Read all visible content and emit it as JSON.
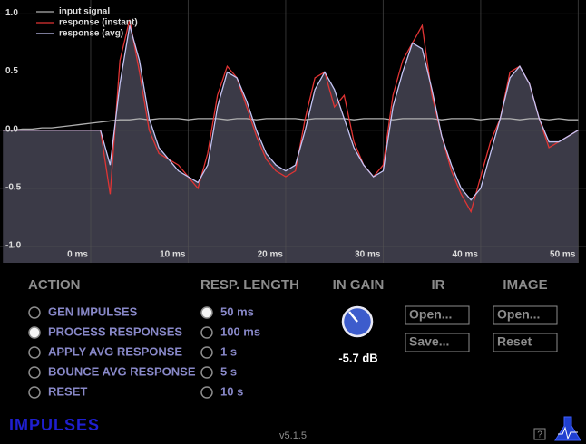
{
  "chart_data": {
    "type": "line",
    "x": [
      -9,
      -8,
      -7,
      -6,
      -5,
      -4,
      -3,
      -2,
      -1,
      0,
      1,
      2,
      3,
      4,
      5,
      6,
      7,
      8,
      9,
      10,
      11,
      12,
      13,
      14,
      15,
      16,
      17,
      18,
      19,
      20,
      21,
      22,
      23,
      24,
      25,
      26,
      27,
      28,
      29,
      30,
      31,
      32,
      33,
      34,
      35,
      36,
      37,
      38,
      39,
      40,
      41,
      42,
      43,
      44,
      45,
      46,
      47,
      48,
      49,
      50
    ],
    "series": [
      {
        "name": "input signal",
        "color": "#b0b0b0",
        "values": [
          0.0,
          0.0,
          0.01,
          0.01,
          0.02,
          0.02,
          0.03,
          0.04,
          0.05,
          0.06,
          0.07,
          0.08,
          0.09,
          0.09,
          0.1,
          0.09,
          0.1,
          0.1,
          0.1,
          0.09,
          0.1,
          0.1,
          0.1,
          0.09,
          0.1,
          0.1,
          0.09,
          0.1,
          0.1,
          0.1,
          0.1,
          0.09,
          0.1,
          0.1,
          0.1,
          0.1,
          0.09,
          0.1,
          0.1,
          0.1,
          0.09,
          0.1,
          0.1,
          0.1,
          0.1,
          0.09,
          0.1,
          0.1,
          0.1,
          0.09,
          0.1,
          0.1,
          0.1,
          0.09,
          0.1,
          0.1,
          0.09,
          0.1,
          0.09,
          0.09
        ]
      },
      {
        "name": "response (instant)",
        "color": "#e03434",
        "values": [
          0,
          0,
          0,
          0,
          0,
          0,
          0,
          0,
          0,
          0,
          0,
          -0.55,
          0.6,
          0.95,
          0.5,
          0.0,
          -0.2,
          -0.25,
          -0.3,
          -0.4,
          -0.5,
          -0.2,
          0.3,
          0.55,
          0.45,
          0.2,
          -0.05,
          -0.25,
          -0.35,
          -0.4,
          -0.35,
          0.1,
          0.45,
          0.5,
          0.2,
          0.3,
          -0.1,
          -0.3,
          -0.4,
          -0.3,
          0.3,
          0.6,
          0.75,
          0.9,
          0.3,
          -0.05,
          -0.35,
          -0.55,
          -0.7,
          -0.4,
          -0.1,
          0.1,
          0.5,
          0.55,
          0.4,
          0.1,
          -0.15,
          -0.1,
          -0.05,
          0.0
        ]
      },
      {
        "name": "response (avg)",
        "color": "#c4c4f4",
        "fill": "#3b3a47",
        "values": [
          0,
          0,
          0,
          0,
          0,
          0,
          0,
          0,
          0,
          0,
          0,
          -0.3,
          0.4,
          0.9,
          0.6,
          0.1,
          -0.15,
          -0.25,
          -0.35,
          -0.4,
          -0.45,
          -0.3,
          0.2,
          0.5,
          0.45,
          0.25,
          0.0,
          -0.2,
          -0.3,
          -0.35,
          -0.3,
          0.0,
          0.35,
          0.5,
          0.35,
          0.1,
          -0.15,
          -0.3,
          -0.4,
          -0.35,
          0.2,
          0.5,
          0.75,
          0.7,
          0.35,
          -0.05,
          -0.3,
          -0.5,
          -0.6,
          -0.5,
          -0.2,
          0.1,
          0.45,
          0.55,
          0.4,
          0.1,
          -0.1,
          -0.1,
          -0.05,
          0.0
        ]
      }
    ],
    "xlim": [
      -9.3,
      50.8
    ],
    "ylim": [
      -1.14,
      1.12
    ],
    "xticks": [
      {
        "value": 0,
        "label": "0 ms"
      },
      {
        "value": 10,
        "label": "10 ms"
      },
      {
        "value": 20,
        "label": "20 ms"
      },
      {
        "value": 30,
        "label": "30 ms"
      },
      {
        "value": 40,
        "label": "40 ms"
      },
      {
        "value": 50,
        "label": "50 ms"
      }
    ],
    "yticks": [
      {
        "value": 1,
        "label": "1.0"
      },
      0.5,
      {
        "value": 0,
        "label": "0.0"
      },
      -0.5,
      {
        "value": -1,
        "label": "-1.0"
      }
    ],
    "grid": true,
    "legend": "upper left"
  },
  "panel": {
    "action": {
      "title": "ACTION",
      "options": [
        "GEN IMPULSES",
        "PROCESS RESPONSES",
        "APPLY AVG RESPONSE",
        "BOUNCE AVG RESPONSE",
        "RESET"
      ],
      "selected": 1
    },
    "resp_length": {
      "title": "RESP. LENGTH",
      "options": [
        "50 ms",
        "100 ms",
        "1 s",
        "5 s",
        "10 s"
      ],
      "selected": 0
    },
    "in_gain": {
      "title": "IN GAIN",
      "value": "-5.7 dB"
    },
    "ir": {
      "title": "IR",
      "buttons": [
        "Open...",
        "Save..."
      ]
    },
    "image": {
      "title": "IMAGE",
      "buttons": [
        "Open...",
        "Reset"
      ]
    }
  },
  "footer": {
    "logo": "IMPULSES",
    "version": "v5.1.5",
    "help": "?"
  }
}
